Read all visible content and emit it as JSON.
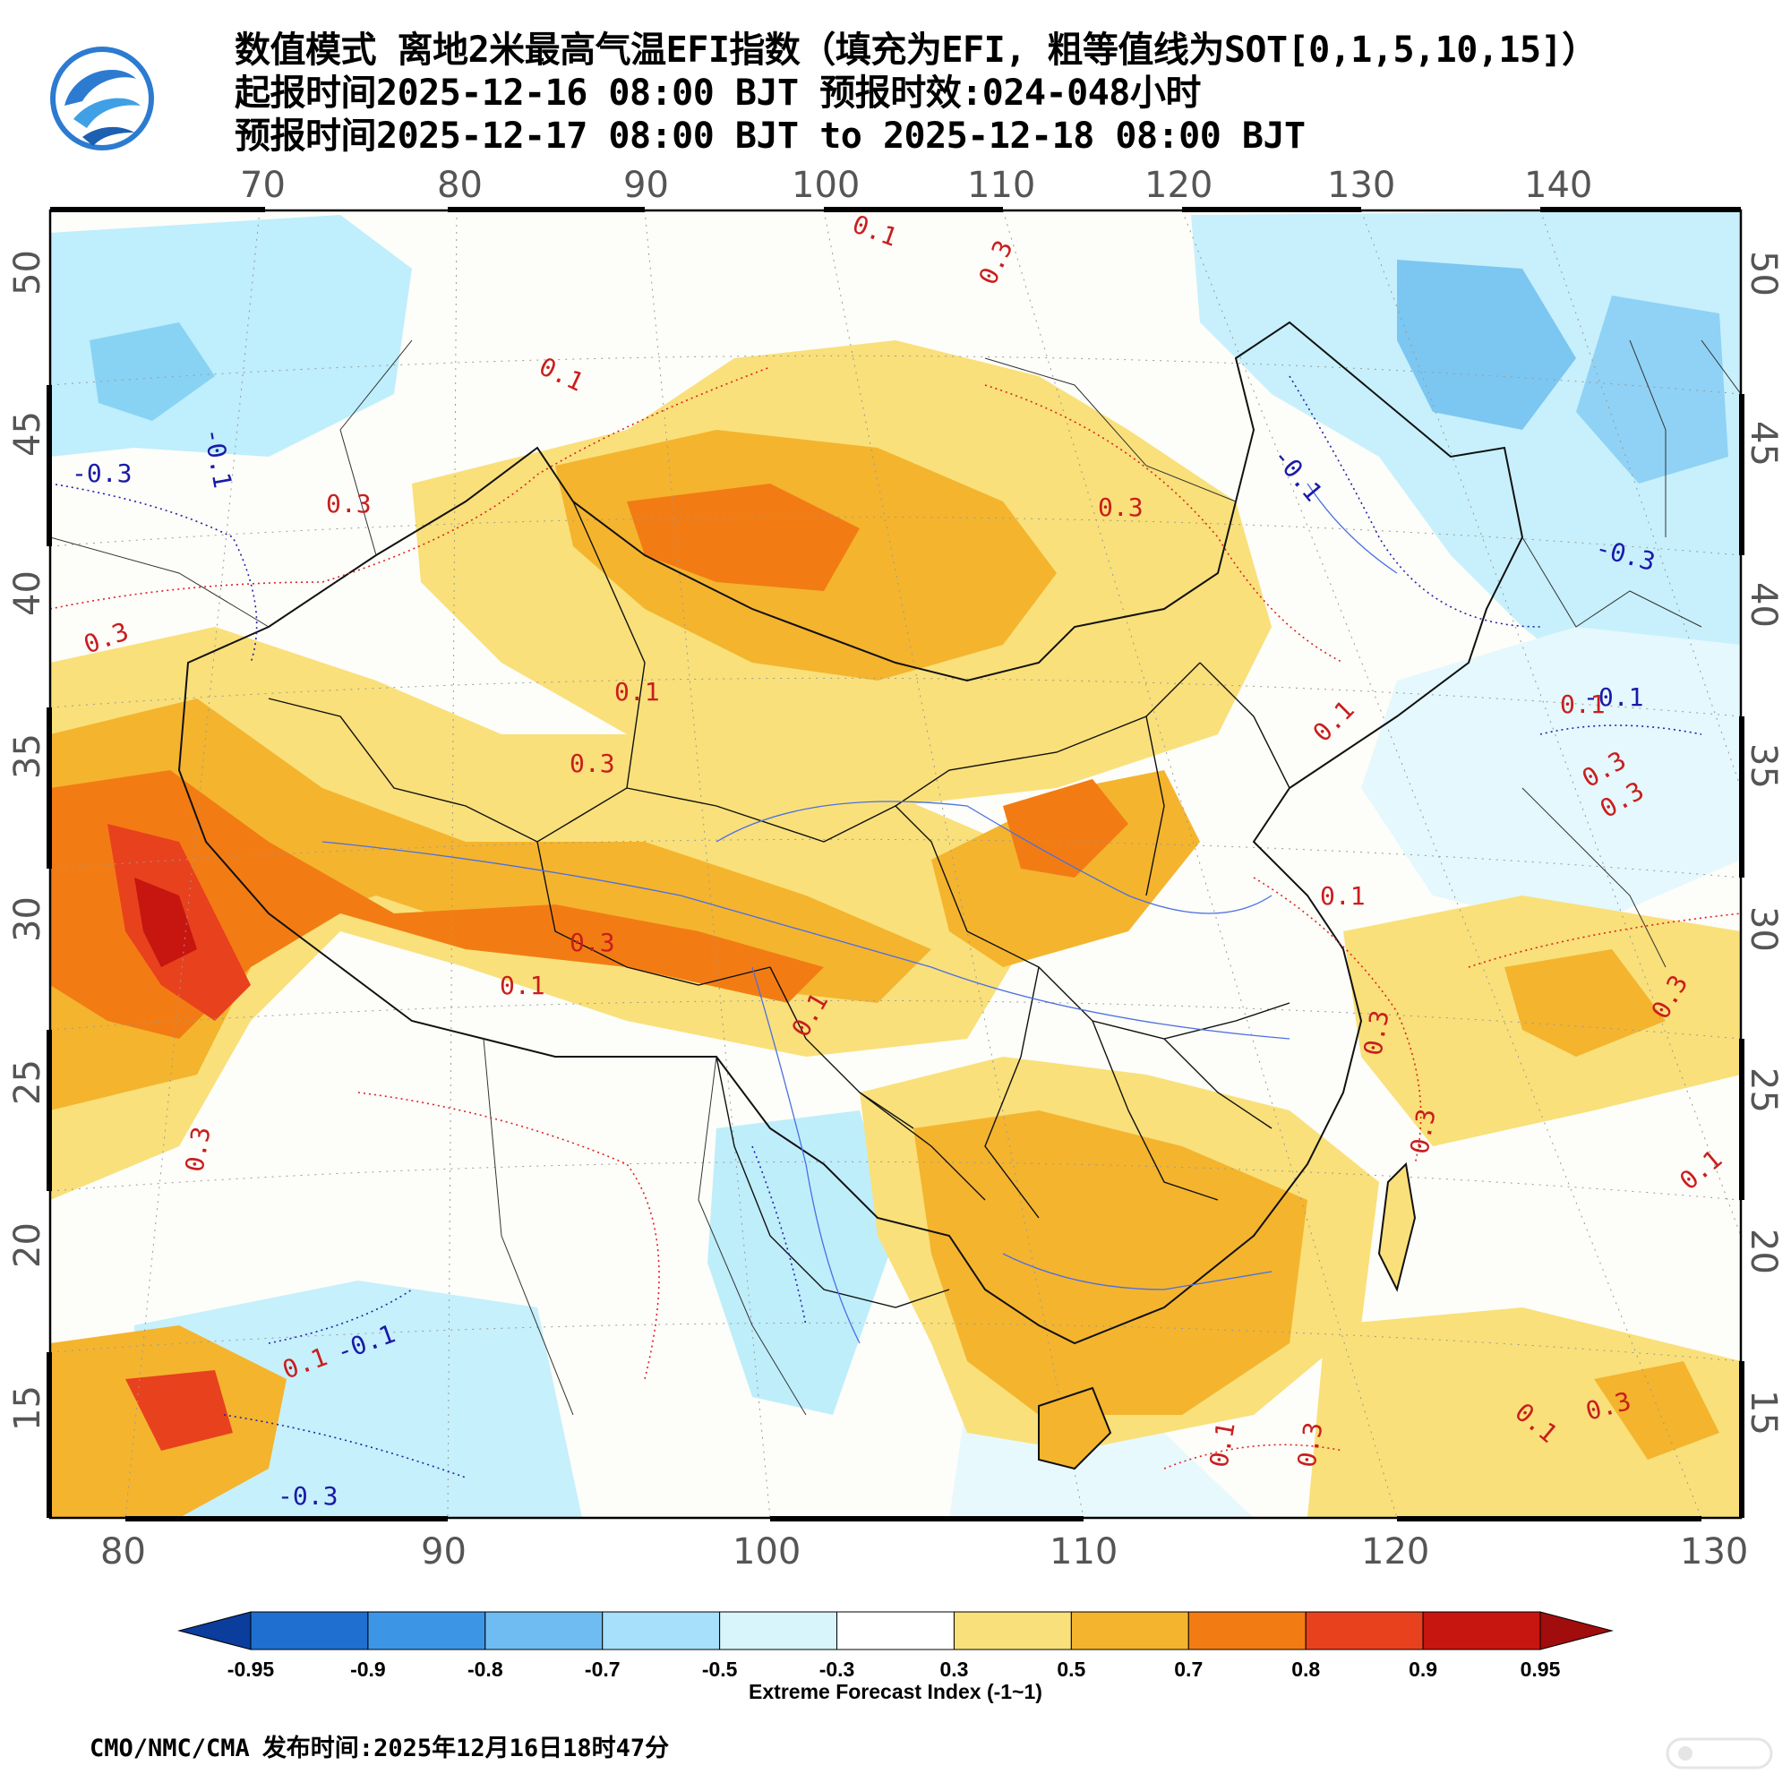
{
  "header": {
    "title_line1": "数值模式 离地2米最高气温EFI指数（填充为EFI, 粗等值线为SOT[0,1,5,10,15]）",
    "title_line2": "起报时间2025-12-16 08:00 BJT 预报时效:024-048小时",
    "title_line3": "预报时间2025-12-17 08:00 BJT to 2025-12-18 08:00 BJT"
  },
  "map": {
    "top_lon_ticks": [
      "70",
      "80",
      "90",
      "100",
      "110",
      "120",
      "130",
      "140"
    ],
    "bottom_lon_ticks": [
      "80",
      "90",
      "100",
      "110",
      "120",
      "130"
    ],
    "lat_ticks": [
      "50",
      "45",
      "40",
      "35",
      "30",
      "25",
      "20",
      "15"
    ],
    "contour_labels": [
      {
        "text": "-0.3",
        "color": "#1a1aa8"
      },
      {
        "text": "-0.1",
        "color": "#1a1aa8"
      },
      {
        "text": "0.3",
        "color": "#c81e1e"
      },
      {
        "text": "0.1",
        "color": "#c81e1e"
      },
      {
        "text": "0.3",
        "color": "#c81e1e"
      },
      {
        "text": "0.1",
        "color": "#c81e1e"
      },
      {
        "text": "0.3",
        "color": "#c81e1e"
      },
      {
        "text": "0.3",
        "color": "#c81e1e"
      },
      {
        "text": "0.1",
        "color": "#c81e1e"
      },
      {
        "text": "0.3",
        "color": "#c81e1e"
      },
      {
        "text": "0.1",
        "color": "#c81e1e"
      },
      {
        "text": "0.3",
        "color": "#c81e1e"
      },
      {
        "text": "0.1",
        "color": "#c81e1e"
      },
      {
        "text": "-0.1",
        "color": "#1a1aa8"
      },
      {
        "text": "-0.3",
        "color": "#1a1aa8"
      },
      {
        "text": "-0.1",
        "color": "#1a1aa8"
      },
      {
        "text": "0.1",
        "color": "#c81e1e"
      },
      {
        "text": "0.3",
        "color": "#c81e1e"
      },
      {
        "text": "0.3",
        "color": "#c81e1e"
      },
      {
        "text": "0.1",
        "color": "#c81e1e"
      },
      {
        "text": "0.3",
        "color": "#c81e1e"
      },
      {
        "text": "0.1",
        "color": "#c81e1e"
      },
      {
        "text": "0.3",
        "color": "#c81e1e"
      },
      {
        "text": "0.3",
        "color": "#c81e1e"
      },
      {
        "text": "0.1",
        "color": "#c81e1e"
      },
      {
        "text": "0.3",
        "color": "#c81e1e"
      },
      {
        "text": "0.1",
        "color": "#c81e1e"
      },
      {
        "text": "0.3",
        "color": "#c81e1e"
      },
      {
        "text": "-0.3",
        "color": "#1a1aa8"
      },
      {
        "text": "-0.1",
        "color": "#1a1aa8"
      },
      {
        "text": "0.1",
        "color": "#c81e1e"
      },
      {
        "text": "0.1",
        "color": "#c81e1e"
      },
      {
        "text": "0.3",
        "color": "#c81e1e"
      }
    ]
  },
  "colorbar": {
    "ticks": [
      "-0.95",
      "-0.9",
      "-0.8",
      "-0.7",
      "-0.5",
      "-0.3",
      "0.3",
      "0.5",
      "0.7",
      "0.8",
      "0.9",
      "0.95"
    ],
    "colors": [
      "#0a3d9c",
      "#1e6fd0",
      "#3d95e6",
      "#6fbcf2",
      "#a6e0fa",
      "#d8f5fc",
      "#ffffff",
      "#f9e07a",
      "#f4b42e",
      "#f27c13",
      "#e8411e",
      "#c7150f",
      "#a10c0c"
    ],
    "title": "Extreme Forecast Index (-1~1)"
  },
  "footer": {
    "agency": "CMO/NMC/CMA",
    "issued": "发布时间:2025年12月16日18时47分"
  }
}
